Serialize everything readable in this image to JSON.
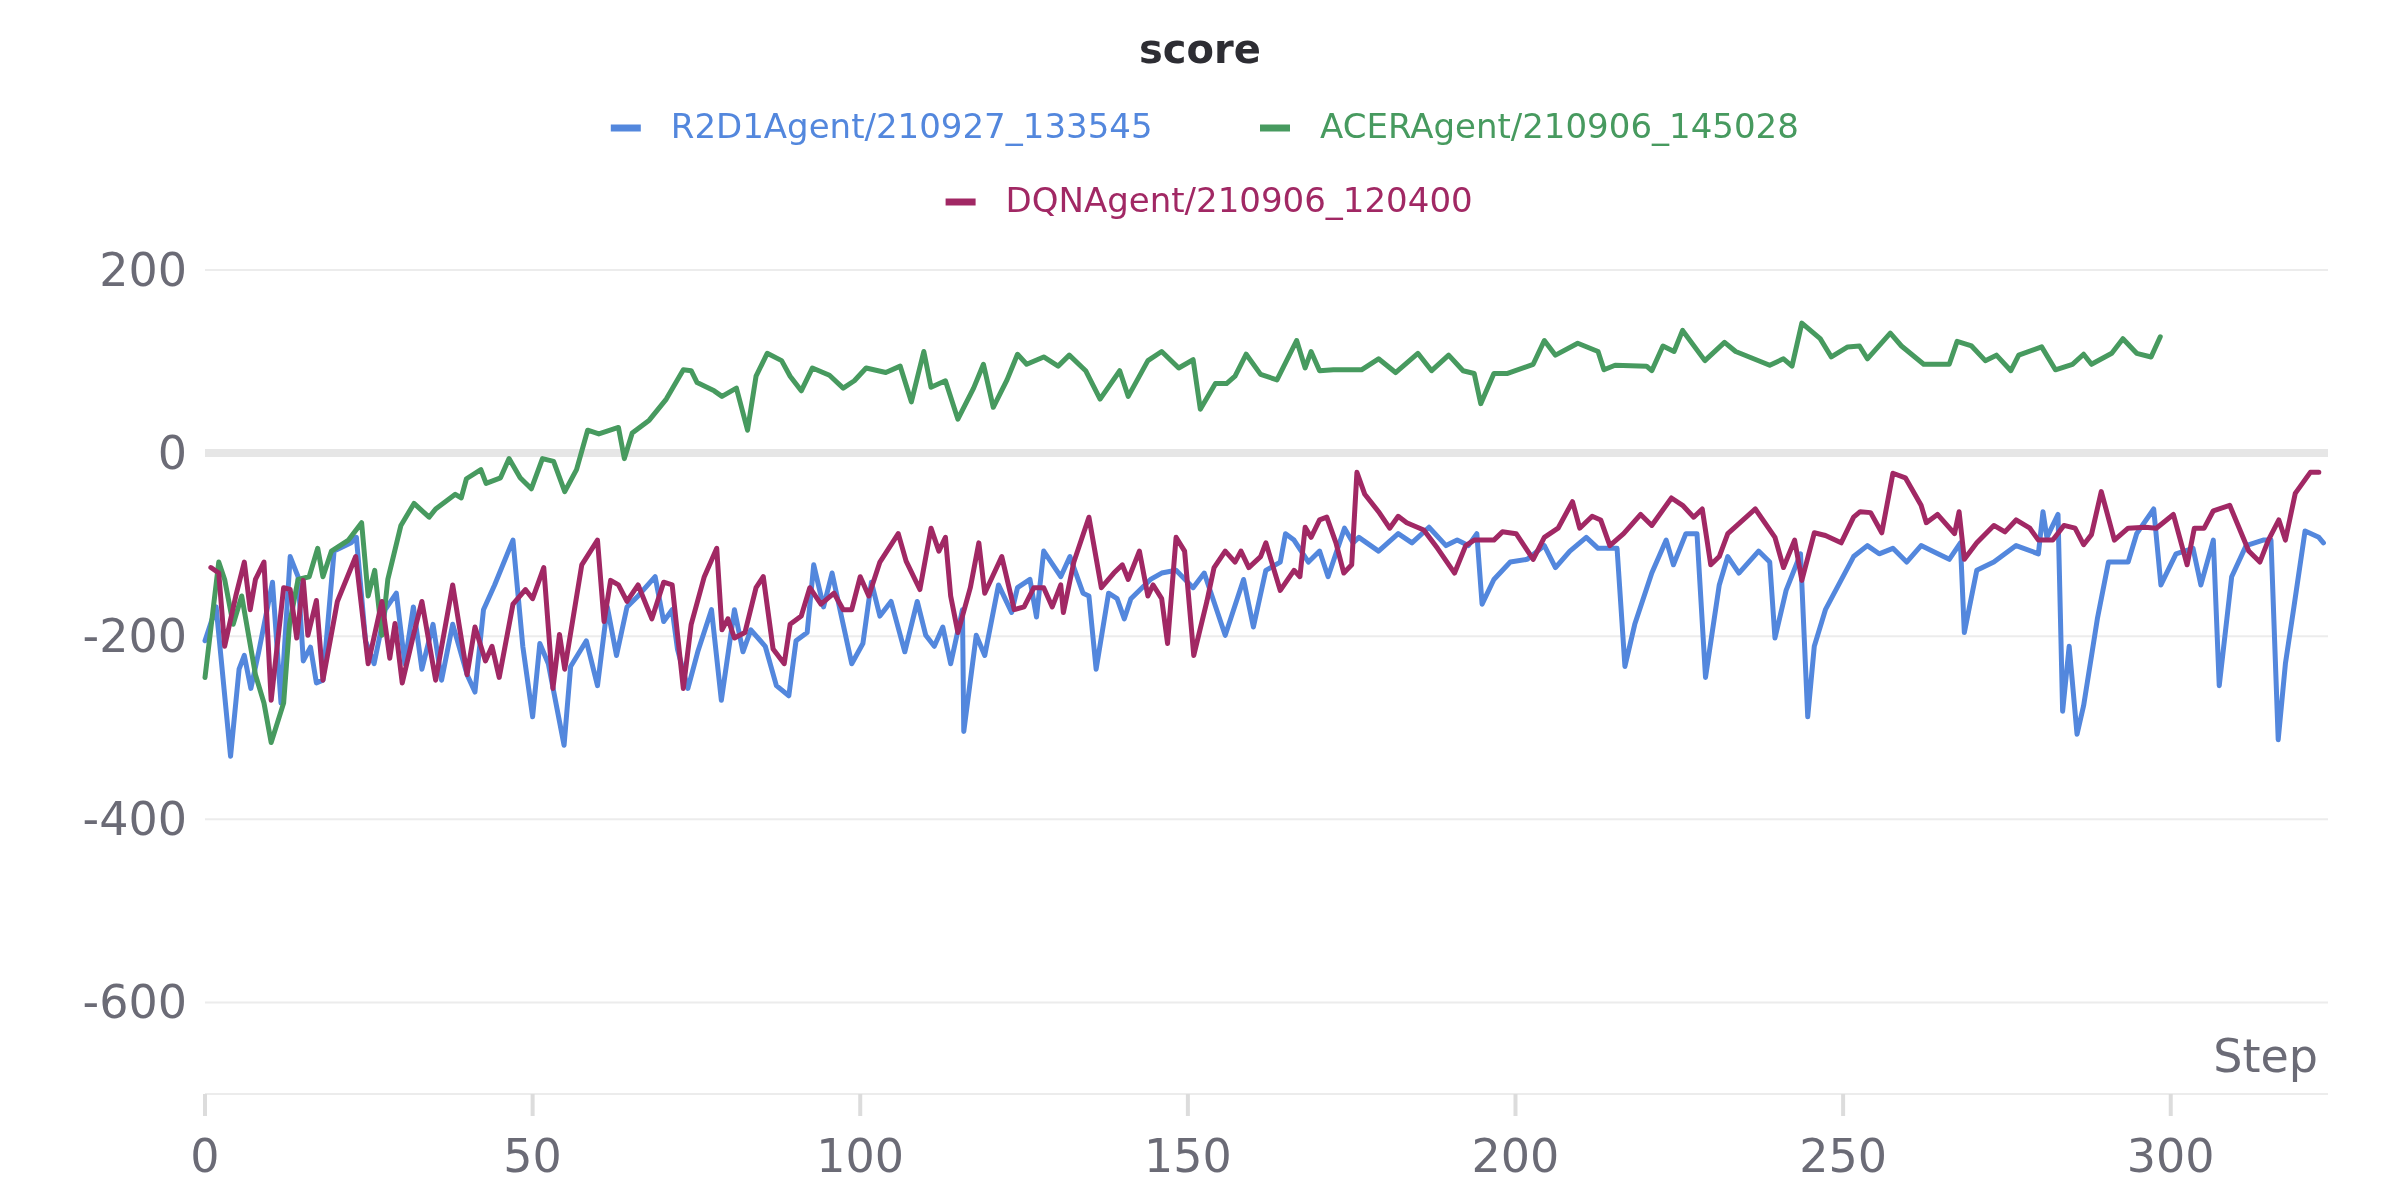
{
  "chart_data": {
    "type": "line",
    "title": "score",
    "xlabel": "Step",
    "xlim": [
      0,
      324
    ],
    "ylim": [
      -700,
      200
    ],
    "xticks": [
      0,
      50,
      100,
      150,
      200,
      250,
      300
    ],
    "yticks": [
      -600,
      -400,
      -200,
      0,
      200
    ],
    "grid": "y",
    "legend": "top",
    "line_style": "solid",
    "ref_lines": [
      {
        "axis": "y",
        "value": 0,
        "color": "#e6e6e6"
      }
    ],
    "series": [
      {
        "name": "R2D1Agent/210927_133545",
        "color": "#5387dd",
        "x": [
          0,
          1.7,
          3.9,
          5.2,
          6,
          7,
          8.2,
          10.3,
          11.6,
          13,
          14.2,
          15,
          16.1,
          17,
          18,
          19.7,
          22.3,
          23.1,
          24.5,
          25.8,
          27.5,
          29.2,
          30.5,
          31.8,
          33.1,
          34.8,
          36.1,
          37.8,
          40,
          41.2,
          42.5,
          44.2,
          47,
          48.5,
          50,
          51.1,
          52.4,
          54.8,
          55.8,
          58.2,
          59.9,
          61.4,
          62.8,
          64.4,
          66.1,
          68.7,
          70,
          71.3,
          72.1,
          73.7,
          75.2,
          77.3,
          78.8,
          80.8,
          82.1,
          83.3,
          85.5,
          87.2,
          89.1,
          90.2,
          91.9,
          92.9,
          94.4,
          95.7,
          97,
          98.7,
          100.4,
          101.7,
          103,
          104.7,
          106.8,
          108.7,
          110,
          111.3,
          112.6,
          113.8,
          115.6,
          115.8,
          117.7,
          119,
          121.1,
          123.1,
          124,
          125.9,
          126.9,
          128,
          130.6,
          132,
          134,
          134.9,
          136,
          137.9,
          139.2,
          140.3,
          141.3,
          144.3,
          146,
          148.2,
          150.8,
          152.5,
          155.7,
          158.5,
          160,
          161.9,
          164.1,
          164.9,
          166.2,
          168.4,
          170.1,
          171.4,
          173.9,
          175.2,
          176.1,
          179.1,
          182.1,
          184.2,
          186.8,
          189.4,
          191.1,
          192.8,
          194.1,
          194.9,
          196.7,
          199.2,
          201.8,
          204.4,
          206.1,
          208.3,
          210.8,
          212.6,
          215.5,
          216.7,
          218.2,
          220.8,
          223,
          224.1,
          226,
          227.7,
          229,
          231.1,
          232.4,
          234.1,
          237.1,
          238.8,
          239.6,
          241.3,
          243.5,
          244.6,
          245.6,
          247.3,
          251.6,
          253.7,
          255.5,
          257.6,
          259.7,
          261.9,
          263.6,
          266.2,
          267.9,
          268.5,
          270.4,
          273,
          276.4,
          279.8,
          280.5,
          281.1,
          282.8,
          283.5,
          284.5,
          285.7,
          286.7,
          288.8,
          290.5,
          293.5,
          294.8,
          297.4,
          298.5,
          300.8,
          303.4,
          304.6,
          306.5,
          307.4,
          309.3,
          311.5,
          314.1,
          315.3,
          316.4,
          317.5,
          318.8,
          320.5,
          322.6,
          323.3
        ],
        "values": [
          -205,
          -168,
          -331,
          -236,
          -221,
          -257,
          -217,
          -141,
          -273,
          -113,
          -135,
          -227,
          -212,
          -251,
          -248,
          -107,
          -98,
          -92,
          -205,
          -230,
          -171,
          -153,
          -230,
          -168,
          -236,
          -187,
          -248,
          -187,
          -242,
          -261,
          -171,
          -144,
          -95,
          -211,
          -288,
          -208,
          -230,
          -319,
          -233,
          -205,
          -254,
          -168,
          -221,
          -168,
          -156,
          -135,
          -184,
          -171,
          -214,
          -257,
          -217,
          -171,
          -270,
          -171,
          -217,
          -193,
          -211,
          -254,
          -265,
          -205,
          -196,
          -122,
          -168,
          -131,
          -174,
          -230,
          -208,
          -141,
          -178,
          -162,
          -217,
          -162,
          -199,
          -211,
          -190,
          -230,
          -171,
          -304,
          -199,
          -221,
          -144,
          -174,
          -147,
          -138,
          -179,
          -107,
          -135,
          -113,
          -153,
          -156,
          -236,
          -153,
          -159,
          -181,
          -159,
          -138,
          -131,
          -128,
          -147,
          -131,
          -199,
          -138,
          -190,
          -128,
          -119,
          -88,
          -95,
          -119,
          -107,
          -135,
          -82,
          -98,
          -92,
          -107,
          -88,
          -98,
          -81,
          -101,
          -95,
          -101,
          -88,
          -165,
          -138,
          -119,
          -116,
          -101,
          -125,
          -107,
          -92,
          -104,
          -104,
          -233,
          -187,
          -131,
          -95,
          -122,
          -88,
          -88,
          -245,
          -144,
          -113,
          -131,
          -107,
          -119,
          -202,
          -150,
          -110,
          -288,
          -211,
          -171,
          -113,
          -101,
          -110,
          -104,
          -119,
          -101,
          -107,
          -116,
          -98,
          -196,
          -128,
          -119,
          -101,
          -110,
          -64,
          -92,
          -67,
          -282,
          -211,
          -307,
          -276,
          -181,
          -119,
          -119,
          -88,
          -61,
          -144,
          -110,
          -104,
          -144,
          -95,
          -254,
          -135,
          -101,
          -95,
          -95,
          -313,
          -230,
          -168,
          -85,
          -92,
          -98
        ]
      },
      {
        "name": "ACERAgent/210906_145028",
        "color": "#479a5f",
        "x": [
          0,
          2.1,
          3,
          4.3,
          5.6,
          7.7,
          9,
          10.1,
          12,
          12.9,
          14.2,
          15.9,
          17.2,
          18,
          19.3,
          21.9,
          23.9,
          24.9,
          25.9,
          27,
          27.9,
          29.9,
          31.9,
          34.2,
          35.2,
          38.2,
          39.1,
          39.9,
          42.1,
          42.9,
          45.1,
          46.4,
          48.1,
          49.8,
          51.5,
          53.2,
          54.9,
          56.7,
          58.4,
          60.1,
          63.1,
          64,
          65.2,
          67.8,
          70.4,
          73,
          74.2,
          75.1,
          77.7,
          78.9,
          81.1,
          82.8,
          84.1,
          85.8,
          88,
          89.3,
          91,
          92.7,
          95.3,
          97.4,
          99.1,
          100.9,
          103.9,
          106.1,
          107.8,
          109.7,
          110.8,
          113,
          114.9,
          117.3,
          118.8,
          120.3,
          122.4,
          124,
          125.4,
          128,
          130.2,
          131.9,
          134.4,
          136.6,
          139.6,
          140.9,
          143.9,
          146,
          148.6,
          150.8,
          151.9,
          154.2,
          155.9,
          157.2,
          158.9,
          161.1,
          163.6,
          166.6,
          167.9,
          168.8,
          170.1,
          172.2,
          176.5,
          179.1,
          181.7,
          185.1,
          187.2,
          189.8,
          192,
          193.7,
          194.7,
          196.7,
          198.8,
          202.7,
          204.4,
          206.1,
          209.5,
          212.6,
          213.5,
          215.2,
          220,
          220.8,
          222.5,
          224.2,
          225.5,
          228.9,
          231.9,
          233.6,
          238.8,
          240.9,
          242.2,
          243.7,
          246.5,
          248.2,
          250.7,
          252.5,
          253.7,
          257.2,
          258.9,
          262.3,
          266.2,
          267.4,
          269.6,
          271.7,
          273.4,
          275.6,
          276.8,
          280.3,
          282.4,
          285,
          286.7,
          287.9,
          291,
          292.7,
          294.8,
          297,
          298.4
        ],
        "values": [
          -245,
          -119,
          -138,
          -187,
          -156,
          -242,
          -273,
          -316,
          -273,
          -187,
          -138,
          -135,
          -104,
          -135,
          -107,
          -95,
          -76,
          -156,
          -128,
          -199,
          -138,
          -79,
          -55,
          -70,
          -61,
          -45,
          -49,
          -28,
          -18,
          -33,
          -27,
          -6,
          -27,
          -39,
          -6,
          -9,
          -42,
          -18,
          25,
          21,
          28,
          -6,
          22,
          36,
          59,
          91,
          90,
          77,
          68,
          62,
          71,
          25,
          84,
          109,
          101,
          84,
          68,
          93,
          85,
          71,
          79,
          93,
          88,
          95,
          56,
          111,
          72,
          79,
          37,
          71,
          97,
          50,
          80,
          108,
          97,
          105,
          95,
          107,
          90,
          59,
          90,
          62,
          101,
          111,
          93,
          102,
          48,
          76,
          76,
          84,
          108,
          86,
          80,
          123,
          93,
          111,
          90,
          91,
          91,
          103,
          88,
          109,
          90,
          107,
          90,
          87,
          54,
          87,
          87,
          97,
          123,
          107,
          120,
          111,
          91,
          96,
          95,
          90,
          117,
          111,
          134,
          101,
          121,
          111,
          96,
          103,
          95,
          142,
          125,
          105,
          116,
          117,
          103,
          131,
          117,
          97,
          97,
          122,
          117,
          101,
          107,
          90,
          107,
          116,
          91,
          97,
          108,
          97,
          109,
          125,
          109,
          105,
          127
        ]
      },
      {
        "name": "DQNAgent/210906_120400",
        "color": "#a12864",
        "x": [
          0.9,
          2.1,
          3,
          4.7,
          6,
          6.9,
          7.7,
          9,
          10.1,
          12,
          13,
          14,
          15,
          15.7,
          17,
          18,
          20.2,
          23,
          24.9,
          27,
          28.2,
          29,
          30.1,
          31.8,
          33.1,
          35.2,
          37.8,
          40,
          41.2,
          42.8,
          43.8,
          44.9,
          47,
          48.9,
          50,
          51.7,
          53.1,
          54.1,
          54.9,
          57.5,
          59.9,
          60.9,
          61.9,
          63.1,
          64.4,
          66.1,
          68.2,
          70,
          71.3,
          73,
          74.2,
          76.2,
          78.1,
          78.9,
          79.8,
          80.8,
          82.4,
          84.1,
          85.2,
          86.7,
          88.4,
          89.3,
          91,
          92.3,
          94,
          96,
          97.4,
          98.7,
          100,
          101.3,
          103,
          105.8,
          107,
          109.1,
          110.8,
          112,
          113,
          113.8,
          114.9,
          116.8,
          118.1,
          119,
          121.6,
          123.5,
          125,
          126.5,
          128,
          129.3,
          130.6,
          131,
          132.6,
          134.9,
          136.8,
          138.7,
          140,
          140.9,
          142.6,
          143.9,
          144.7,
          146,
          146.9,
          148.2,
          149.5,
          150.9,
          152.9,
          154,
          155.7,
          157.2,
          158.1,
          159.3,
          161.1,
          161.9,
          164.1,
          166.2,
          167.1,
          167.9,
          168.8,
          170.1,
          171.2,
          172.6,
          173.8,
          175,
          175.8,
          177,
          179.1,
          180.8,
          182.1,
          183.4,
          186,
          188.1,
          190.7,
          192.4,
          193.7,
          196.7,
          198,
          200.1,
          202.7,
          204.4,
          206.5,
          208.7,
          209.8,
          211.7,
          213,
          214.4,
          216.5,
          219.1,
          220.8,
          223.8,
          225.5,
          227.2,
          228.5,
          229.8,
          231.1,
          232.4,
          236.6,
          239.6,
          240.9,
          242.6,
          243.7,
          245.6,
          247.3,
          249.7,
          251.6,
          252.6,
          254.2,
          255.9,
          257.6,
          259.5,
          261.9,
          262.7,
          264.4,
          267,
          267.7,
          268.5,
          270.4,
          273,
          274.7,
          276.4,
          278.5,
          279.8,
          282,
          283.7,
          285.4,
          286.7,
          287.9,
          289.4,
          291.4,
          293.5,
          296.1,
          297.8,
          300.4,
          302.5,
          303.6,
          305.1,
          306.5,
          309,
          311.9,
          313.6,
          314.9,
          316.5,
          317.5,
          319,
          321.3,
          322.6
        ],
        "values": [
          -125,
          -131,
          -211,
          -156,
          -119,
          -171,
          -138,
          -119,
          -270,
          -147,
          -149,
          -202,
          -139,
          -199,
          -161,
          -248,
          -162,
          -113,
          -230,
          -162,
          -224,
          -186,
          -251,
          -199,
          -162,
          -248,
          -144,
          -242,
          -190,
          -227,
          -211,
          -245,
          -165,
          -149,
          -159,
          -125,
          -257,
          -198,
          -236,
          -122,
          -95,
          -184,
          -139,
          -144,
          -162,
          -144,
          -181,
          -141,
          -144,
          -257,
          -187,
          -135,
          -104,
          -193,
          -181,
          -202,
          -196,
          -147,
          -135,
          -214,
          -230,
          -187,
          -178,
          -147,
          -165,
          -153,
          -171,
          -171,
          -135,
          -156,
          -119,
          -88,
          -118,
          -149,
          -82,
          -107,
          -92,
          -156,
          -196,
          -147,
          -98,
          -153,
          -113,
          -171,
          -168,
          -147,
          -147,
          -168,
          -144,
          -174,
          -119,
          -70,
          -147,
          -131,
          -122,
          -138,
          -107,
          -156,
          -144,
          -159,
          -208,
          -92,
          -107,
          -221,
          -162,
          -125,
          -107,
          -119,
          -107,
          -125,
          -113,
          -98,
          -150,
          -128,
          -135,
          -81,
          -92,
          -73,
          -70,
          -98,
          -131,
          -122,
          -21,
          -45,
          -64,
          -82,
          -69,
          -76,
          -84,
          -104,
          -131,
          -101,
          -95,
          -95,
          -86,
          -88,
          -116,
          -92,
          -82,
          -53,
          -82,
          -69,
          -73,
          -101,
          -88,
          -67,
          -79,
          -49,
          -57,
          -70,
          -61,
          -122,
          -113,
          -88,
          -61,
          -92,
          -125,
          -95,
          -139,
          -87,
          -90,
          -98,
          -70,
          -64,
          -65,
          -87,
          -22,
          -27,
          -57,
          -76,
          -67,
          -88,
          -64,
          -116,
          -98,
          -79,
          -86,
          -73,
          -82,
          -95,
          -95,
          -79,
          -82,
          -100,
          -89,
          -42,
          -95,
          -82,
          -81,
          -82,
          -67,
          -122,
          -82,
          -82,
          -63,
          -57,
          -107,
          -119,
          -95,
          -73,
          -95,
          -44,
          -21,
          -21
        ]
      }
    ]
  }
}
